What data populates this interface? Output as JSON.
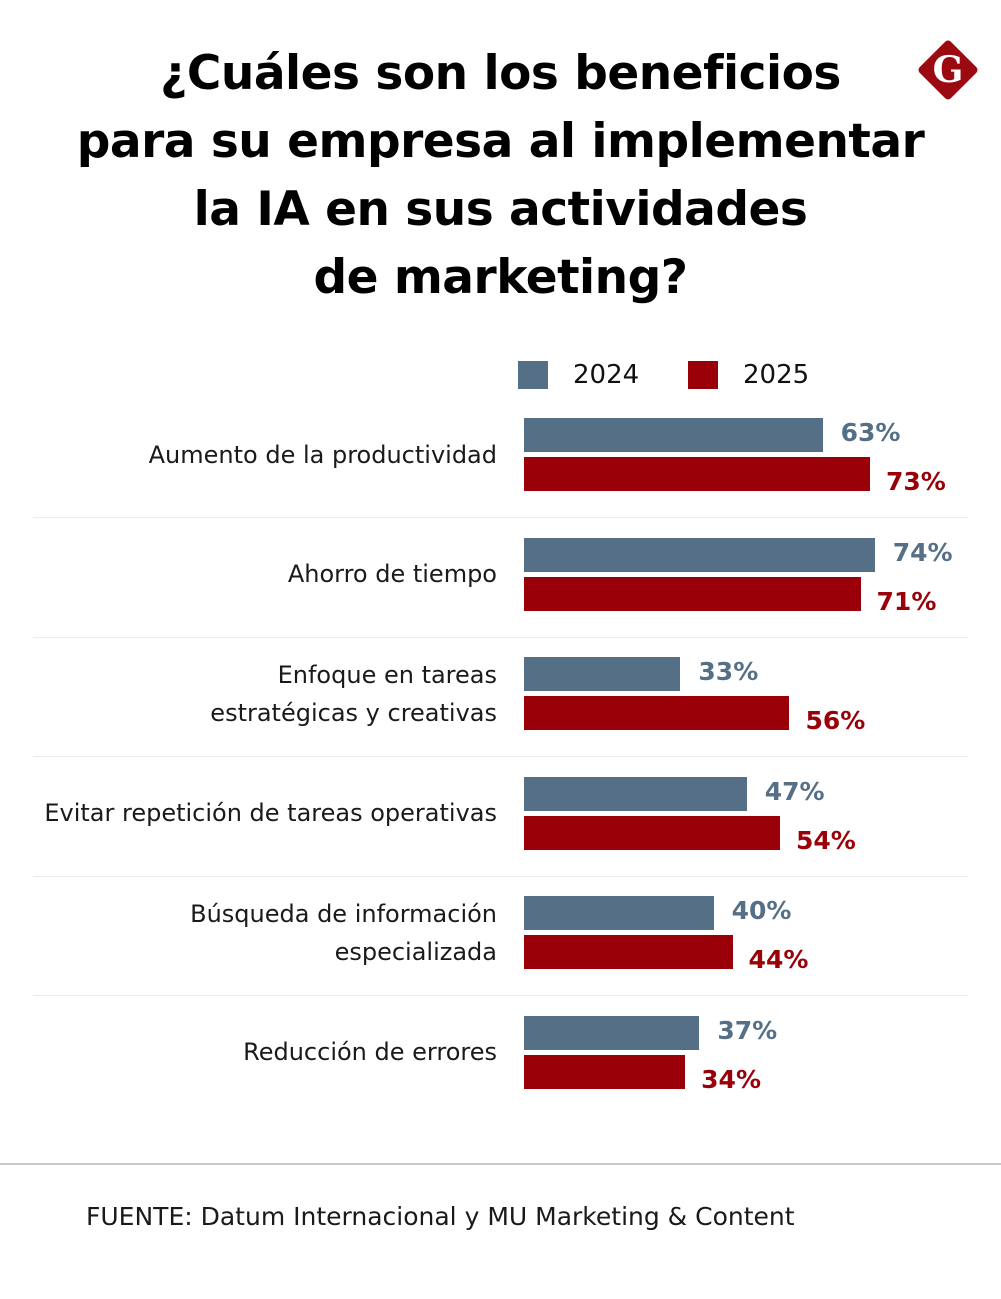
{
  "header": {
    "title_lines": [
      "¿Cuáles son los beneficios",
      "para su empresa al implementar",
      "la IA en sus actividades",
      "de marketing?"
    ],
    "logo_letter": "G"
  },
  "colors": {
    "series_2024": "#557086",
    "series_2025": "#990008",
    "logo": "#9b0a10"
  },
  "chart_data": {
    "type": "bar",
    "orientation": "horizontal",
    "title": "¿Cuáles son los beneficios para su empresa al implementar la IA en sus actividades de marketing?",
    "categories": [
      "Aumento de la productividad",
      "Ahorro de tiempo",
      "Enfoque en tareas estratégicas y creativas",
      "Evitar repetición de tareas operativas",
      "Búsqueda de información especializada",
      "Reducción de errores"
    ],
    "category_label_lines": [
      [
        "Aumento de la productividad"
      ],
      [
        "Ahorro de tiempo"
      ],
      [
        "Enfoque en tareas",
        "estratégicas y creativas"
      ],
      [
        "Evitar repetición de tareas operativas"
      ],
      [
        "Búsqueda de información",
        "especializada"
      ],
      [
        "Reducción de errores"
      ]
    ],
    "series": [
      {
        "name": "2024",
        "values": [
          63,
          74,
          33,
          47,
          40,
          37
        ],
        "labels": [
          "63%",
          "74%",
          "33%",
          "47%",
          "40%",
          "37%"
        ]
      },
      {
        "name": "2025",
        "values": [
          73,
          71,
          56,
          54,
          44,
          34
        ],
        "labels": [
          "73%",
          "71%",
          "56%",
          "54%",
          "44%",
          "34%"
        ]
      }
    ],
    "unit": "%",
    "xlabel": "",
    "ylabel": "",
    "xlim": [
      0,
      100
    ],
    "grid": false,
    "legend": {
      "position": "top-right",
      "entries": [
        "2024",
        "2025"
      ]
    }
  },
  "footer": {
    "source": "FUENTE: Datum Internacional y MU Marketing & Content"
  }
}
